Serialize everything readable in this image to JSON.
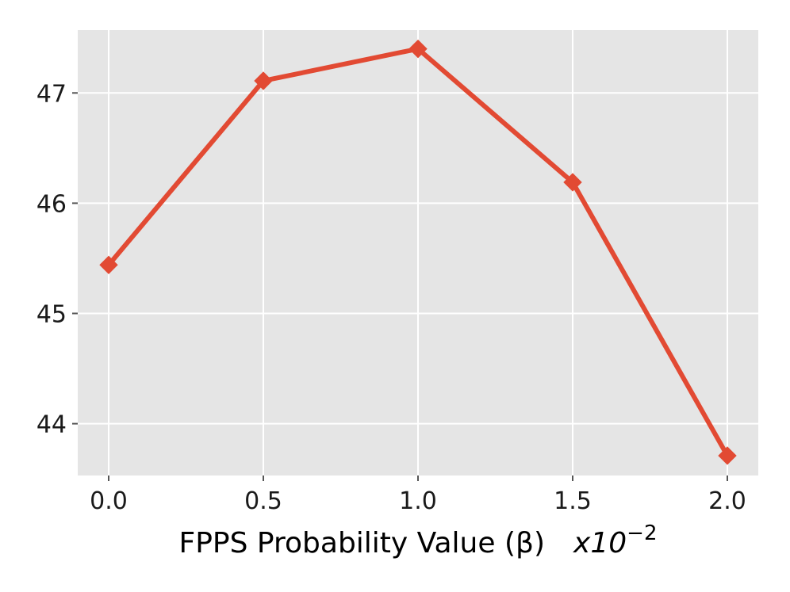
{
  "chart_data": {
    "type": "line",
    "title": "",
    "xlabel": "FPPS Probability Value (β)",
    "xlabel_multiplier": "x10",
    "xlabel_multiplier_exponent": "−2",
    "ylabel": "",
    "x": [
      0.0,
      0.5,
      1.0,
      1.5,
      2.0
    ],
    "series": [
      {
        "values": [
          45.44,
          47.11,
          47.4,
          46.19,
          43.71
        ],
        "color": "#E24A33",
        "marker": "diamond"
      }
    ],
    "xticks": [
      "0.0",
      "0.5",
      "1.0",
      "1.5",
      "2.0"
    ],
    "yticks": [
      "44",
      "45",
      "46",
      "47"
    ],
    "xlim": [
      -0.1,
      2.1
    ],
    "ylim": [
      43.53,
      47.57
    ],
    "grid": true,
    "legend": false
  },
  "style": {
    "plot_background": "#E5E5E5",
    "grid_color": "#FFFFFF",
    "line_color": "#E24A33"
  }
}
